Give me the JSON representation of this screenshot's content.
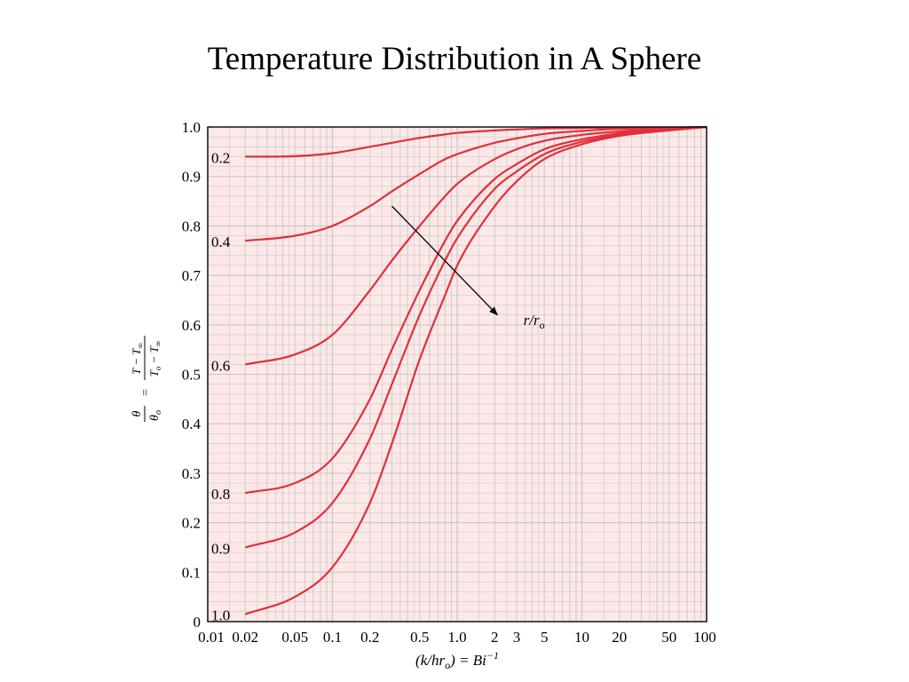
{
  "title": "Temperature Distribution in A Sphere",
  "chart_data": {
    "type": "line",
    "title": "Temperature Distribution in A Sphere",
    "xlabel": "(k/hr_o) = Bi^-1",
    "xlabel_parts": {
      "main": "(k/hr",
      "sub": "o",
      "post": ") = Bi",
      "sup": "−1"
    },
    "ylabel_parts": {
      "lhs_num": "θ",
      "lhs_den": "θ",
      "lhs_den_sub": "o",
      "eq": "=",
      "rhs_num": "T − T",
      "rhs_num_sub": "∞",
      "rhs_den": "T",
      "rhs_den_sub1": "o",
      "rhs_den_mid": " − T",
      "rhs_den_sub2": "∞"
    },
    "xscale": "log",
    "xlim": [
      0.01,
      100
    ],
    "ylim": [
      0,
      1.0
    ],
    "grid": true,
    "background_color": "#fde8e8",
    "grid_color": "#c8c8c8",
    "curve_color": "#e0303a",
    "x_ticks": [
      0.01,
      0.02,
      0.05,
      0.1,
      0.2,
      0.5,
      1.0,
      2,
      3,
      5,
      10,
      20,
      50,
      100
    ],
    "x_tick_labels": [
      "0.01",
      "0.02",
      "0.05",
      "0.1",
      "0.2",
      "0.5",
      "1.0",
      "2",
      "3",
      "5",
      "10",
      "20",
      "50",
      "100"
    ],
    "y_ticks": [
      0,
      0.1,
      0.2,
      0.3,
      0.4,
      0.5,
      0.6,
      0.7,
      0.8,
      0.9,
      1.0
    ],
    "y_tick_labels": [
      "0",
      "0.1",
      "0.2",
      "0.3",
      "0.4",
      "0.5",
      "0.6",
      "0.7",
      "0.8",
      "0.9",
      "1.0"
    ],
    "annotation": {
      "text_main": "r/r",
      "text_sub": "o",
      "arrow_from": [
        0.3,
        0.84
      ],
      "arrow_to": [
        2.1,
        0.62
      ],
      "label_at": [
        3.4,
        0.6
      ]
    },
    "series": [
      {
        "name": "0.2",
        "x": [
          0.02,
          0.05,
          0.1,
          0.2,
          0.3,
          0.5,
          0.8,
          1.0,
          2,
          3,
          5,
          10,
          20,
          50,
          100
        ],
        "y": [
          0.94,
          0.941,
          0.947,
          0.96,
          0.968,
          0.978,
          0.985,
          0.988,
          0.993,
          0.995,
          0.997,
          0.998,
          0.999,
          0.999,
          1.0
        ]
      },
      {
        "name": "0.4",
        "x": [
          0.02,
          0.05,
          0.1,
          0.2,
          0.3,
          0.5,
          0.8,
          1.0,
          2,
          3,
          5,
          10,
          20,
          50,
          100
        ],
        "y": [
          0.77,
          0.78,
          0.8,
          0.84,
          0.87,
          0.905,
          0.935,
          0.945,
          0.968,
          0.977,
          0.986,
          0.992,
          0.996,
          0.998,
          1.0
        ]
      },
      {
        "name": "0.6",
        "x": [
          0.02,
          0.05,
          0.1,
          0.2,
          0.3,
          0.5,
          0.8,
          1.0,
          2,
          3,
          5,
          10,
          20,
          50,
          100
        ],
        "y": [
          0.52,
          0.54,
          0.58,
          0.67,
          0.73,
          0.8,
          0.86,
          0.885,
          0.935,
          0.955,
          0.972,
          0.984,
          0.991,
          0.996,
          1.0
        ]
      },
      {
        "name": "0.8",
        "x": [
          0.02,
          0.05,
          0.1,
          0.2,
          0.3,
          0.5,
          0.8,
          1.0,
          2,
          3,
          5,
          10,
          20,
          50,
          100
        ],
        "y": [
          0.26,
          0.28,
          0.33,
          0.45,
          0.55,
          0.67,
          0.77,
          0.81,
          0.895,
          0.925,
          0.955,
          0.975,
          0.987,
          0.995,
          1.0
        ]
      },
      {
        "name": "0.9",
        "x": [
          0.02,
          0.05,
          0.1,
          0.2,
          0.3,
          0.5,
          0.8,
          1.0,
          2,
          3,
          5,
          10,
          20,
          50,
          100
        ],
        "y": [
          0.15,
          0.18,
          0.24,
          0.37,
          0.48,
          0.62,
          0.73,
          0.775,
          0.875,
          0.91,
          0.945,
          0.97,
          0.984,
          0.994,
          1.0
        ]
      },
      {
        "name": "1.0",
        "x": [
          0.02,
          0.05,
          0.1,
          0.2,
          0.3,
          0.5,
          0.8,
          1.0,
          2,
          3,
          5,
          10,
          20,
          50,
          100
        ],
        "y": [
          0.015,
          0.05,
          0.11,
          0.24,
          0.36,
          0.53,
          0.66,
          0.72,
          0.84,
          0.89,
          0.935,
          0.965,
          0.982,
          0.993,
          1.0
        ]
      }
    ]
  }
}
